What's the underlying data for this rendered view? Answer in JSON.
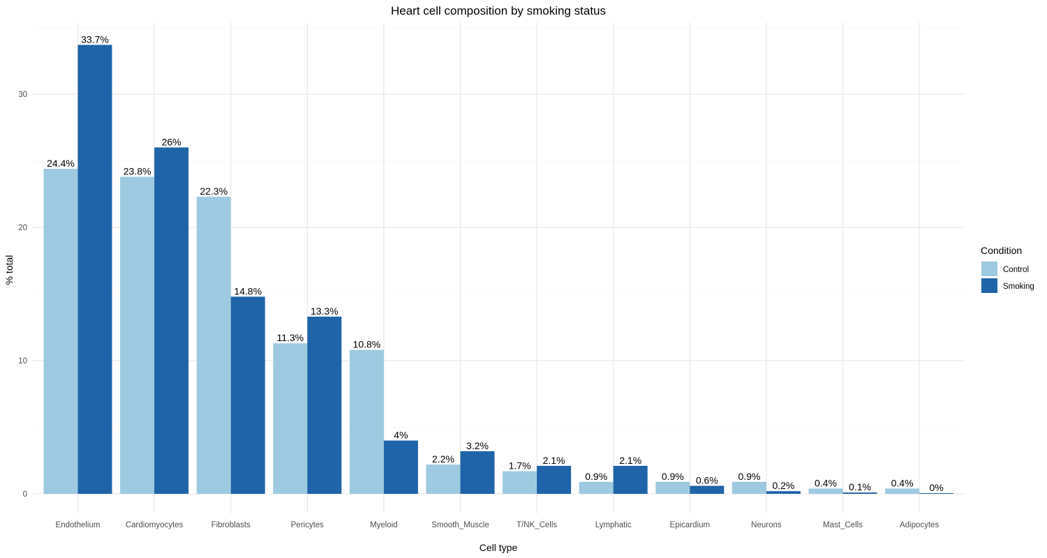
{
  "chart_data": {
    "type": "bar",
    "title": "Heart cell composition by smoking status",
    "xlabel": "Cell type",
    "ylabel": "% total",
    "ylim": [
      0,
      35
    ],
    "yticks": [
      0,
      10,
      20,
      30
    ],
    "categories": [
      "Endothelium",
      "Cardiomyocytes",
      "Fibroblasts",
      "Pericytes",
      "Myeloid",
      "Smooth_Muscle",
      "T/NK_Cells",
      "Lymphatic",
      "Epicardium",
      "Neurons",
      "Mast_Cells",
      "Adipocytes"
    ],
    "series": [
      {
        "name": "Control",
        "color": "#9ECAE1",
        "values": [
          24.4,
          23.8,
          22.3,
          11.3,
          10.8,
          2.2,
          1.7,
          0.9,
          0.9,
          0.9,
          0.4,
          0.4
        ],
        "labels": [
          "24.4%",
          "23.8%",
          "22.3%",
          "11.3%",
          "10.8%",
          "2.2%",
          "1.7%",
          "0.9%",
          "0.9%",
          "0.9%",
          "0.4%",
          "0.4%"
        ]
      },
      {
        "name": "Smoking",
        "color": "#1F64A8",
        "values": [
          33.7,
          26,
          14.8,
          13.3,
          4,
          3.2,
          2.1,
          2.1,
          0.6,
          0.2,
          0.1,
          0.04
        ],
        "labels": [
          "33.7%",
          "26%",
          "14.8%",
          "13.3%",
          "4%",
          "3.2%",
          "2.1%",
          "2.1%",
          "0.6%",
          "0.2%",
          "0.1%",
          "0%"
        ]
      }
    ],
    "legend": {
      "title": "Condition",
      "position": "right"
    },
    "grid": true
  }
}
